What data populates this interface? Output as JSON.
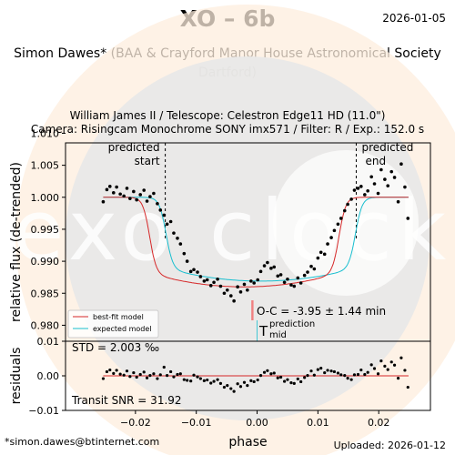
{
  "header": {
    "title": "XO – 6b",
    "date": "2026-01-05",
    "observer_line1": "Simon Dawes* (BAA & Crayford Manor House Astronomical Society",
    "observer_line2": "Dartford)",
    "telescope": "William James II / Telescope: Celestron Edge11 HD (11.0\")",
    "camera": "Camera: Risingcam Monochrome SONY imx571 / Filter: R / Exp.: 152.0 s"
  },
  "footer": {
    "email": "*simon.dawes@btinternet.com",
    "uploaded": "Uploaded: 2026-01-12"
  },
  "watermark": {
    "text": "exo clock",
    "color": "#f6c88a"
  },
  "colors": {
    "best_fit": "#d62728",
    "expected": "#17becf",
    "points": "#000000",
    "oc_bar": "#f08080"
  },
  "chart_data": [
    {
      "type": "scatter",
      "panel": "main",
      "xlabel": "phase",
      "ylabel": "relative flux (de-trended)",
      "xlim": [
        -0.0315,
        0.0285
      ],
      "ylim": [
        0.9775,
        1.0085
      ],
      "xticks": [
        -0.02,
        -0.01,
        0.0,
        0.01,
        0.02
      ],
      "xtick_labels": [
        "−0.02",
        "−0.01",
        "0.00",
        "0.01",
        "0.02"
      ],
      "yticks": [
        0.98,
        0.985,
        0.99,
        0.995,
        1.0,
        1.005,
        1.01
      ],
      "ytick_labels": [
        "0.980",
        "0.985",
        "0.990",
        "0.995",
        "1.000",
        "1.005",
        "1.010"
      ],
      "ingress_phase": -0.0151,
      "egress_phase": 0.0163,
      "predicted_start_label": [
        "predicted",
        "start"
      ],
      "predicted_end_label": [
        "predicted",
        "end"
      ],
      "oc_text": "O-C = -3.95 ± 1.44 min",
      "tmid_label": "T",
      "tmid_super": "prediction",
      "tmid_sub": "mid",
      "legend": [
        {
          "name": "best-fit model",
          "color": "#d62728"
        },
        {
          "name": "expected model",
          "color": "#17becf"
        }
      ],
      "series": [
        {
          "name": "observations",
          "x": [
            -0.0253,
            -0.0247,
            -0.0242,
            -0.0236,
            -0.0231,
            -0.0225,
            -0.0219,
            -0.0214,
            -0.0209,
            -0.0203,
            -0.0198,
            -0.0192,
            -0.0186,
            -0.0181,
            -0.0176,
            -0.017,
            -0.0164,
            -0.0159,
            -0.0153,
            -0.0148,
            -0.0142,
            -0.0137,
            -0.0131,
            -0.0126,
            -0.012,
            -0.0115,
            -0.0109,
            -0.0104,
            -0.0098,
            -0.0093,
            -0.0087,
            -0.0082,
            -0.0076,
            -0.0071,
            -0.0065,
            -0.006,
            -0.0054,
            -0.0049,
            -0.0043,
            -0.0038,
            -0.0032,
            -0.0027,
            -0.0021,
            -0.0016,
            -0.001,
            -0.0005,
            0.0001,
            0.0006,
            0.0012,
            0.0017,
            0.0023,
            0.0028,
            0.0034,
            0.0039,
            0.0045,
            0.005,
            0.0056,
            0.0061,
            0.0067,
            0.0072,
            0.0078,
            0.0083,
            0.0089,
            0.0094,
            0.01,
            0.0105,
            0.0111,
            0.0116,
            0.0122,
            0.0127,
            0.0133,
            0.0138,
            0.0144,
            0.0149,
            0.0155,
            0.016,
            0.0166,
            0.0171,
            0.0177,
            0.0182,
            0.0188,
            0.0193,
            0.0199,
            0.0204,
            0.021,
            0.0215,
            0.0221,
            0.0226,
            0.0232,
            0.0237,
            0.0243,
            0.0248
          ],
          "y": [
            0.9993,
            1.0012,
            1.0017,
            1.0007,
            1.0016,
            1.0005,
            1.0002,
            1.0014,
            0.9998,
            1.0009,
            0.9996,
            1.0004,
            1.0011,
            0.9994,
            1.0001,
            1.0006,
            0.999,
            0.998,
            0.9972,
            0.9958,
            0.9962,
            0.9944,
            0.9936,
            0.9927,
            0.9912,
            0.99,
            0.9884,
            0.9887,
            0.9883,
            0.9876,
            0.9869,
            0.9871,
            0.9862,
            0.9867,
            0.9872,
            0.9861,
            0.985,
            0.9855,
            0.9846,
            0.9838,
            0.986,
            0.9852,
            0.9864,
            0.9855,
            0.9869,
            0.9866,
            0.9871,
            0.9884,
            0.9893,
            0.9898,
            0.9889,
            0.9891,
            0.9877,
            0.9879,
            0.9867,
            0.9872,
            0.9863,
            0.9861,
            0.9874,
            0.9866,
            0.9878,
            0.9883,
            0.9892,
            0.9888,
            0.9905,
            0.9914,
            0.9911,
            0.9927,
            0.9937,
            0.9948,
            0.9958,
            0.9967,
            0.9979,
            0.9989,
            0.9997,
            1.0011,
            1.0014,
            1.0017,
            1.0004,
            1.001,
            1.0032,
            1.0021,
            1.0006,
            1.0043,
            1.0028,
            1.0018,
            1.004,
            1.0031,
            0.9993,
            1.0052,
            1.0016,
            0.9967
          ]
        }
      ]
    },
    {
      "type": "scatter",
      "panel": "residuals",
      "ylabel": "residuals",
      "xlim": [
        -0.0315,
        0.0285
      ],
      "ylim": [
        -0.01,
        0.01
      ],
      "yticks": [
        -0.01,
        0.0,
        0.01
      ],
      "ytick_labels": [
        "−0.01",
        "0.00",
        "0.01"
      ],
      "std_text": "STD = 2.003 ‰",
      "snr_text": "Transit SNR = 31.92",
      "series": [
        {
          "name": "residuals",
          "x": [
            -0.0253,
            -0.0247,
            -0.0242,
            -0.0236,
            -0.0231,
            -0.0225,
            -0.0219,
            -0.0214,
            -0.0209,
            -0.0203,
            -0.0198,
            -0.0192,
            -0.0186,
            -0.0181,
            -0.0176,
            -0.017,
            -0.0164,
            -0.0159,
            -0.0153,
            -0.0148,
            -0.0142,
            -0.0137,
            -0.0131,
            -0.0126,
            -0.012,
            -0.0115,
            -0.0109,
            -0.0104,
            -0.0098,
            -0.0093,
            -0.0087,
            -0.0082,
            -0.0076,
            -0.0071,
            -0.0065,
            -0.006,
            -0.0054,
            -0.0049,
            -0.0043,
            -0.0038,
            -0.0032,
            -0.0027,
            -0.0021,
            -0.0016,
            -0.001,
            -0.0005,
            0.0001,
            0.0006,
            0.0012,
            0.0017,
            0.0023,
            0.0028,
            0.0034,
            0.0039,
            0.0045,
            0.005,
            0.0056,
            0.0061,
            0.0067,
            0.0072,
            0.0078,
            0.0083,
            0.0089,
            0.0094,
            0.01,
            0.0105,
            0.0111,
            0.0116,
            0.0122,
            0.0127,
            0.0133,
            0.0138,
            0.0144,
            0.0149,
            0.0155,
            0.016,
            0.0166,
            0.0171,
            0.0177,
            0.0182,
            0.0188,
            0.0193,
            0.0199,
            0.0204,
            0.021,
            0.0215,
            0.0221,
            0.0226,
            0.0232,
            0.0237,
            0.0243,
            0.0248
          ],
          "y": [
            -0.0008,
            0.0012,
            0.0017,
            0.0007,
            0.0016,
            0.0005,
            0.0002,
            0.0014,
            -0.0002,
            0.0009,
            -0.0004,
            0.0004,
            0.0011,
            -0.0006,
            0.0001,
            0.0006,
            -0.0008,
            0.0003,
            0.0025,
            0.0001,
            0.0012,
            -0.0003,
            0.0004,
            0.0006,
            -0.0011,
            -0.0013,
            -0.0015,
            0.0002,
            -0.0003,
            -0.0008,
            -0.0014,
            -0.0012,
            -0.0021,
            -0.0016,
            -0.0011,
            -0.0022,
            -0.0033,
            -0.0028,
            -0.0037,
            -0.0045,
            -0.0023,
            -0.0031,
            -0.0019,
            -0.0028,
            -0.0014,
            -0.0017,
            -0.0012,
            0.0001,
            0.001,
            0.0015,
            0.0006,
            0.0008,
            -0.0006,
            -0.0004,
            -0.0016,
            -0.0011,
            -0.002,
            -0.0022,
            -0.0009,
            -0.0017,
            -0.0005,
            0.0001,
            0.0014,
            0.0002,
            0.0018,
            0.0022,
            0.0009,
            0.0016,
            0.0014,
            0.0012,
            0.0008,
            0.0003,
            0.0001,
            -0.0007,
            -0.0011,
            0.0003,
            0.0004,
            0.0017,
            0.0004,
            0.001,
            0.0032,
            0.0021,
            0.0006,
            0.0043,
            0.0028,
            0.0018,
            0.004,
            0.0031,
            -0.0007,
            0.0052,
            0.0016,
            -0.0033
          ]
        }
      ]
    }
  ]
}
